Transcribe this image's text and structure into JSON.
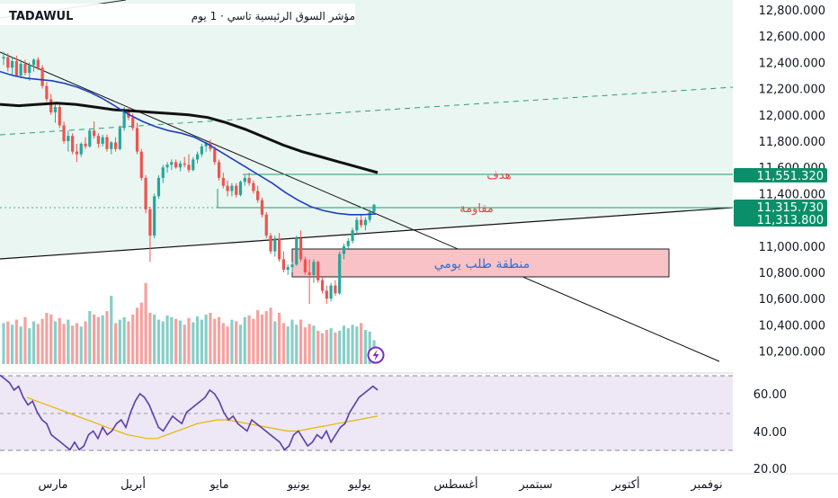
{
  "header": {
    "symbol": "TADAWUL",
    "title": "مؤشر السوق الرئيسية تاسي · 1 يوم"
  },
  "price_axis": {
    "ticks": [
      "12,800.000",
      "12,600.000",
      "12,400.000",
      "12,200.000",
      "12,000.000",
      "11,800.000",
      "11,600.000",
      "11,400.000",
      "11,200.000",
      "11,000.000",
      "10,800.000",
      "10,600.000",
      "10,400.000",
      "10,200.000"
    ],
    "badges": [
      {
        "label": "11,551.320",
        "value": 11551.32,
        "color": "#0b8f6a"
      },
      {
        "label": "11,315.730",
        "value": 11315.73,
        "color": "#0b8f6a"
      },
      {
        "label": "11,313.800",
        "value": 11313.8,
        "color": "#0b8f6a"
      }
    ]
  },
  "rsi_axis": {
    "ticks": [
      "60.00",
      "40.00",
      "20.00"
    ]
  },
  "time_axis": {
    "labels": [
      "مارس",
      "أبريل",
      "مايو",
      "يونيو",
      "يوليو",
      "أغسطس",
      "سبتمبر",
      "أكتوبر",
      "نوفمبر"
    ]
  },
  "annotations": {
    "target_label": "هدف",
    "resistance_label": "مقاومة",
    "demand_zone_label": "منطقة طلب يومي"
  },
  "colors": {
    "up": "#26a69a",
    "down": "#ef5350",
    "fast_ma": "#1e3fbf",
    "slow_ma": "#111111",
    "channel_fill": "#eaf6f1",
    "demand_fill": "#f8c2c6",
    "rsi_line": "#5b3ea6",
    "rsi_ma": "#e6b800",
    "rsi_band": "#ede7f6",
    "annotation_text": "#e0463f",
    "zone_text": "#2f6fd6"
  },
  "chart_data": {
    "type": "candlestick",
    "timeframe": "1D",
    "ylim": [
      10100,
      12850
    ],
    "candles": [
      {
        "o": 12430,
        "h": 12480,
        "l": 12380,
        "c": 12440
      },
      {
        "o": 12440,
        "h": 12470,
        "l": 12330,
        "c": 12360
      },
      {
        "o": 12360,
        "h": 12440,
        "l": 12300,
        "c": 12410
      },
      {
        "o": 12410,
        "h": 12450,
        "l": 12290,
        "c": 12300
      },
      {
        "o": 12300,
        "h": 12420,
        "l": 12280,
        "c": 12390
      },
      {
        "o": 12390,
        "h": 12420,
        "l": 12300,
        "c": 12320
      },
      {
        "o": 12320,
        "h": 12400,
        "l": 12260,
        "c": 12380
      },
      {
        "o": 12380,
        "h": 12430,
        "l": 12330,
        "c": 12420
      },
      {
        "o": 12420,
        "h": 12440,
        "l": 12340,
        "c": 12360
      },
      {
        "o": 12360,
        "h": 12380,
        "l": 12200,
        "c": 12220
      },
      {
        "o": 12220,
        "h": 12250,
        "l": 12100,
        "c": 12120
      },
      {
        "o": 12120,
        "h": 12160,
        "l": 12000,
        "c": 12020
      },
      {
        "o": 12020,
        "h": 12080,
        "l": 11940,
        "c": 12060
      },
      {
        "o": 12060,
        "h": 12080,
        "l": 11900,
        "c": 11920
      },
      {
        "o": 11920,
        "h": 11950,
        "l": 11780,
        "c": 11800
      },
      {
        "o": 11800,
        "h": 11880,
        "l": 11720,
        "c": 11840
      },
      {
        "o": 11840,
        "h": 11860,
        "l": 11700,
        "c": 11720
      },
      {
        "o": 11720,
        "h": 11780,
        "l": 11640,
        "c": 11700
      },
      {
        "o": 11700,
        "h": 11790,
        "l": 11680,
        "c": 11780
      },
      {
        "o": 11780,
        "h": 11830,
        "l": 11740,
        "c": 11760
      },
      {
        "o": 11760,
        "h": 11890,
        "l": 11750,
        "c": 11880
      },
      {
        "o": 11880,
        "h": 11950,
        "l": 11820,
        "c": 11840
      },
      {
        "o": 11840,
        "h": 11860,
        "l": 11750,
        "c": 11780
      },
      {
        "o": 11780,
        "h": 11850,
        "l": 11760,
        "c": 11830
      },
      {
        "o": 11830,
        "h": 11850,
        "l": 11720,
        "c": 11740
      },
      {
        "o": 11740,
        "h": 11800,
        "l": 11700,
        "c": 11790
      },
      {
        "o": 11790,
        "h": 11830,
        "l": 11720,
        "c": 11740
      },
      {
        "o": 11740,
        "h": 11920,
        "l": 11730,
        "c": 11900
      },
      {
        "o": 11900,
        "h": 12060,
        "l": 11880,
        "c": 12040
      },
      {
        "o": 12040,
        "h": 12060,
        "l": 11960,
        "c": 11980
      },
      {
        "o": 11980,
        "h": 12010,
        "l": 11880,
        "c": 11900
      },
      {
        "o": 11900,
        "h": 11940,
        "l": 11700,
        "c": 11720
      },
      {
        "o": 11720,
        "h": 11740,
        "l": 11500,
        "c": 11520
      },
      {
        "o": 11520,
        "h": 11540,
        "l": 11250,
        "c": 11280
      },
      {
        "o": 11280,
        "h": 11300,
        "l": 10880,
        "c": 11080
      },
      {
        "o": 11080,
        "h": 11400,
        "l": 11060,
        "c": 11380
      },
      {
        "o": 11380,
        "h": 11540,
        "l": 11360,
        "c": 11520
      },
      {
        "o": 11520,
        "h": 11620,
        "l": 11480,
        "c": 11600
      },
      {
        "o": 11600,
        "h": 11640,
        "l": 11560,
        "c": 11620
      },
      {
        "o": 11620,
        "h": 11660,
        "l": 11580,
        "c": 11640
      },
      {
        "o": 11640,
        "h": 11660,
        "l": 11590,
        "c": 11600
      },
      {
        "o": 11600,
        "h": 11650,
        "l": 11570,
        "c": 11630
      },
      {
        "o": 11630,
        "h": 11680,
        "l": 11600,
        "c": 11620
      },
      {
        "o": 11620,
        "h": 11700,
        "l": 11560,
        "c": 11580
      },
      {
        "o": 11580,
        "h": 11680,
        "l": 11570,
        "c": 11660
      },
      {
        "o": 11660,
        "h": 11720,
        "l": 11630,
        "c": 11700
      },
      {
        "o": 11700,
        "h": 11780,
        "l": 11680,
        "c": 11760
      },
      {
        "o": 11760,
        "h": 11800,
        "l": 11720,
        "c": 11790
      },
      {
        "o": 11790,
        "h": 11810,
        "l": 11720,
        "c": 11740
      },
      {
        "o": 11740,
        "h": 11760,
        "l": 11620,
        "c": 11640
      },
      {
        "o": 11640,
        "h": 11660,
        "l": 11500,
        "c": 11520
      },
      {
        "o": 11520,
        "h": 11560,
        "l": 11440,
        "c": 11460
      },
      {
        "o": 11460,
        "h": 11500,
        "l": 11380,
        "c": 11420
      },
      {
        "o": 11420,
        "h": 11480,
        "l": 11380,
        "c": 11460
      },
      {
        "o": 11460,
        "h": 11480,
        "l": 11370,
        "c": 11390
      },
      {
        "o": 11390,
        "h": 11500,
        "l": 11380,
        "c": 11490
      },
      {
        "o": 11490,
        "h": 11540,
        "l": 11460,
        "c": 11520
      },
      {
        "o": 11520,
        "h": 11560,
        "l": 11460,
        "c": 11480
      },
      {
        "o": 11480,
        "h": 11500,
        "l": 11400,
        "c": 11420
      },
      {
        "o": 11420,
        "h": 11460,
        "l": 11330,
        "c": 11350
      },
      {
        "o": 11350,
        "h": 11370,
        "l": 11220,
        "c": 11240
      },
      {
        "o": 11240,
        "h": 11260,
        "l": 11060,
        "c": 11080
      },
      {
        "o": 11080,
        "h": 11100,
        "l": 10940,
        "c": 10960
      },
      {
        "o": 10960,
        "h": 11080,
        "l": 10920,
        "c": 11060
      },
      {
        "o": 11060,
        "h": 11100,
        "l": 10880,
        "c": 10900
      },
      {
        "o": 10900,
        "h": 10960,
        "l": 10800,
        "c": 10820
      },
      {
        "o": 10820,
        "h": 10860,
        "l": 10780,
        "c": 10840
      },
      {
        "o": 10840,
        "h": 10880,
        "l": 10800,
        "c": 10860
      },
      {
        "o": 10860,
        "h": 11080,
        "l": 10850,
        "c": 11060
      },
      {
        "o": 11060,
        "h": 11120,
        "l": 10880,
        "c": 10900
      },
      {
        "o": 10900,
        "h": 10920,
        "l": 10780,
        "c": 10800
      },
      {
        "o": 10800,
        "h": 10900,
        "l": 10560,
        "c": 10780
      },
      {
        "o": 10780,
        "h": 10900,
        "l": 10720,
        "c": 10880
      },
      {
        "o": 10880,
        "h": 10890,
        "l": 10720,
        "c": 10740
      },
      {
        "o": 10740,
        "h": 10760,
        "l": 10640,
        "c": 10660
      },
      {
        "o": 10660,
        "h": 10700,
        "l": 10560,
        "c": 10600
      },
      {
        "o": 10600,
        "h": 10720,
        "l": 10580,
        "c": 10700
      },
      {
        "o": 10700,
        "h": 10740,
        "l": 10620,
        "c": 10640
      },
      {
        "o": 10640,
        "h": 10960,
        "l": 10630,
        "c": 10940
      },
      {
        "o": 10940,
        "h": 11020,
        "l": 10900,
        "c": 11000
      },
      {
        "o": 11000,
        "h": 11060,
        "l": 10980,
        "c": 11040
      },
      {
        "o": 11040,
        "h": 11140,
        "l": 11020,
        "c": 11120
      },
      {
        "o": 11120,
        "h": 11220,
        "l": 11100,
        "c": 11200
      },
      {
        "o": 11200,
        "h": 11240,
        "l": 11140,
        "c": 11160
      },
      {
        "o": 11160,
        "h": 11220,
        "l": 11120,
        "c": 11200
      },
      {
        "o": 11200,
        "h": 11280,
        "l": 11180,
        "c": 11260
      },
      {
        "o": 11260,
        "h": 11320,
        "l": 11240,
        "c": 11315.73
      }
    ],
    "fast_ma": [
      12330,
      12300,
      12280,
      12270,
      12260,
      12240,
      12210,
      12170,
      12120,
      12060,
      12000,
      11950,
      11910,
      11880,
      11860,
      11830,
      11780,
      11720,
      11660,
      11600,
      11540,
      11480,
      11410,
      11350,
      11300,
      11270,
      11250,
      11240,
      11240,
      11245
    ],
    "slow_ma": [
      12080,
      12070,
      12080,
      12090,
      12080,
      12060,
      12040,
      12030,
      12020,
      12010,
      12000,
      11980,
      11940,
      11890,
      11830,
      11770,
      11720,
      11680,
      11640,
      11600,
      11560
    ],
    "levels": {
      "target": 11551.32,
      "resistance": 11315.73
    },
    "demand_zone": {
      "from": 10780,
      "to": 10990
    },
    "volume": [
      48,
      50,
      46,
      52,
      44,
      55,
      42,
      50,
      47,
      53,
      60,
      58,
      50,
      54,
      47,
      52,
      45,
      48,
      44,
      50,
      62,
      58,
      55,
      57,
      62,
      80,
      48,
      52,
      55,
      50,
      58,
      66,
      72,
      95,
      60,
      58,
      52,
      50,
      57,
      55,
      53,
      51,
      46,
      54,
      49,
      56,
      52,
      58,
      60,
      53,
      55,
      48,
      44,
      52,
      50,
      46,
      55,
      57,
      53,
      63,
      58,
      62,
      66,
      50,
      60,
      48,
      44,
      52,
      46,
      52,
      43,
      47,
      45,
      39,
      36,
      40,
      42,
      37,
      39,
      45,
      42,
      46,
      44,
      48,
      40,
      38,
      28
    ],
    "rsi": {
      "ylim": [
        20,
        72
      ],
      "values": [
        70,
        68,
        66,
        62,
        64,
        58,
        54,
        56,
        50,
        46,
        44,
        38,
        36,
        34,
        32,
        30,
        34,
        30,
        32,
        38,
        40,
        36,
        42,
        38,
        40,
        44,
        46,
        42,
        50,
        56,
        60,
        58,
        54,
        48,
        42,
        40,
        44,
        48,
        46,
        44,
        50,
        52,
        54,
        56,
        58,
        62,
        60,
        56,
        50,
        46,
        48,
        44,
        42,
        40,
        46,
        44,
        42,
        40,
        38,
        36,
        34,
        30,
        32,
        38,
        40,
        36,
        32,
        34,
        38,
        36,
        40,
        34,
        38,
        42,
        44,
        50,
        54,
        58,
        60,
        62,
        64,
        62
      ],
      "ma": [
        58,
        56,
        54,
        52,
        50,
        48,
        46,
        44,
        42,
        40,
        38,
        37,
        36,
        36,
        38,
        40,
        42,
        44,
        45,
        46,
        46,
        45,
        44,
        43,
        42,
        41,
        40,
        40,
        41,
        42,
        43,
        44,
        45,
        46,
        47,
        48
      ]
    }
  }
}
